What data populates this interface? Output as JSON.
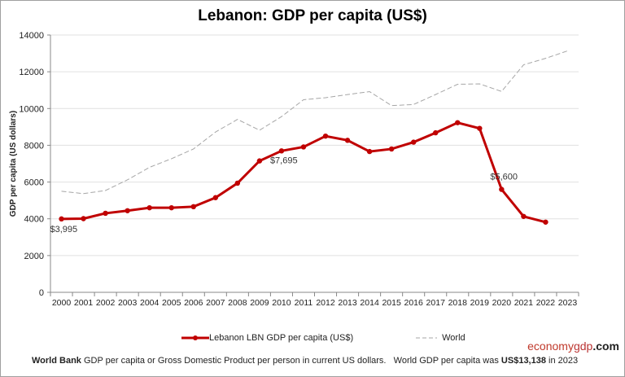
{
  "chart_data": {
    "type": "line",
    "title": "Lebanon: GDP per capita (US$)",
    "ylabel": "GDP per capita (US dollars)",
    "xlabel": "",
    "ylim": [
      0,
      14000
    ],
    "yticks": [
      0,
      2000,
      4000,
      6000,
      8000,
      10000,
      12000,
      14000
    ],
    "grid": true,
    "legend_position": "bottom",
    "categories": [
      "2000",
      "2001",
      "2002",
      "2003",
      "2004",
      "2005",
      "2006",
      "2007",
      "2008",
      "2009",
      "2010",
      "2011",
      "2012",
      "2013",
      "2014",
      "2015",
      "2016",
      "2017",
      "2018",
      "2019",
      "2020",
      "2021",
      "2022",
      "2023"
    ],
    "series": [
      {
        "name": "Lebanon LBN GDP per capita (US$)",
        "color": "#c00000",
        "style": "solid-markers",
        "values": [
          3995,
          4010,
          4300,
          4440,
          4600,
          4600,
          4660,
          5150,
          5940,
          7150,
          7695,
          7910,
          8500,
          8270,
          7660,
          7800,
          8170,
          8680,
          9230,
          8920,
          5600,
          4130,
          3820,
          null
        ]
      },
      {
        "name": "World",
        "color": "#a6a6a6",
        "style": "dashed",
        "values": [
          5500,
          5370,
          5540,
          6120,
          6800,
          7270,
          7800,
          8720,
          9410,
          8820,
          9560,
          10480,
          10590,
          10760,
          10920,
          10160,
          10220,
          10760,
          11320,
          11340,
          10930,
          12380,
          12730,
          13138
        ]
      }
    ],
    "annotations": [
      {
        "x": "2000",
        "label": "$3,995"
      },
      {
        "x": "2010",
        "label": "$7,695"
      },
      {
        "x": "2020",
        "label": "$5,600"
      }
    ]
  },
  "brand": {
    "part1": "economy",
    "part2": "gdp",
    "part3": ".com"
  },
  "footer": {
    "source": "World Bank",
    "text": " GDP per capita or Gross Domestic Product per person in current US dollars.   World GDP per capita was ",
    "value": "US$13,138",
    "suffix": " in 2023"
  }
}
